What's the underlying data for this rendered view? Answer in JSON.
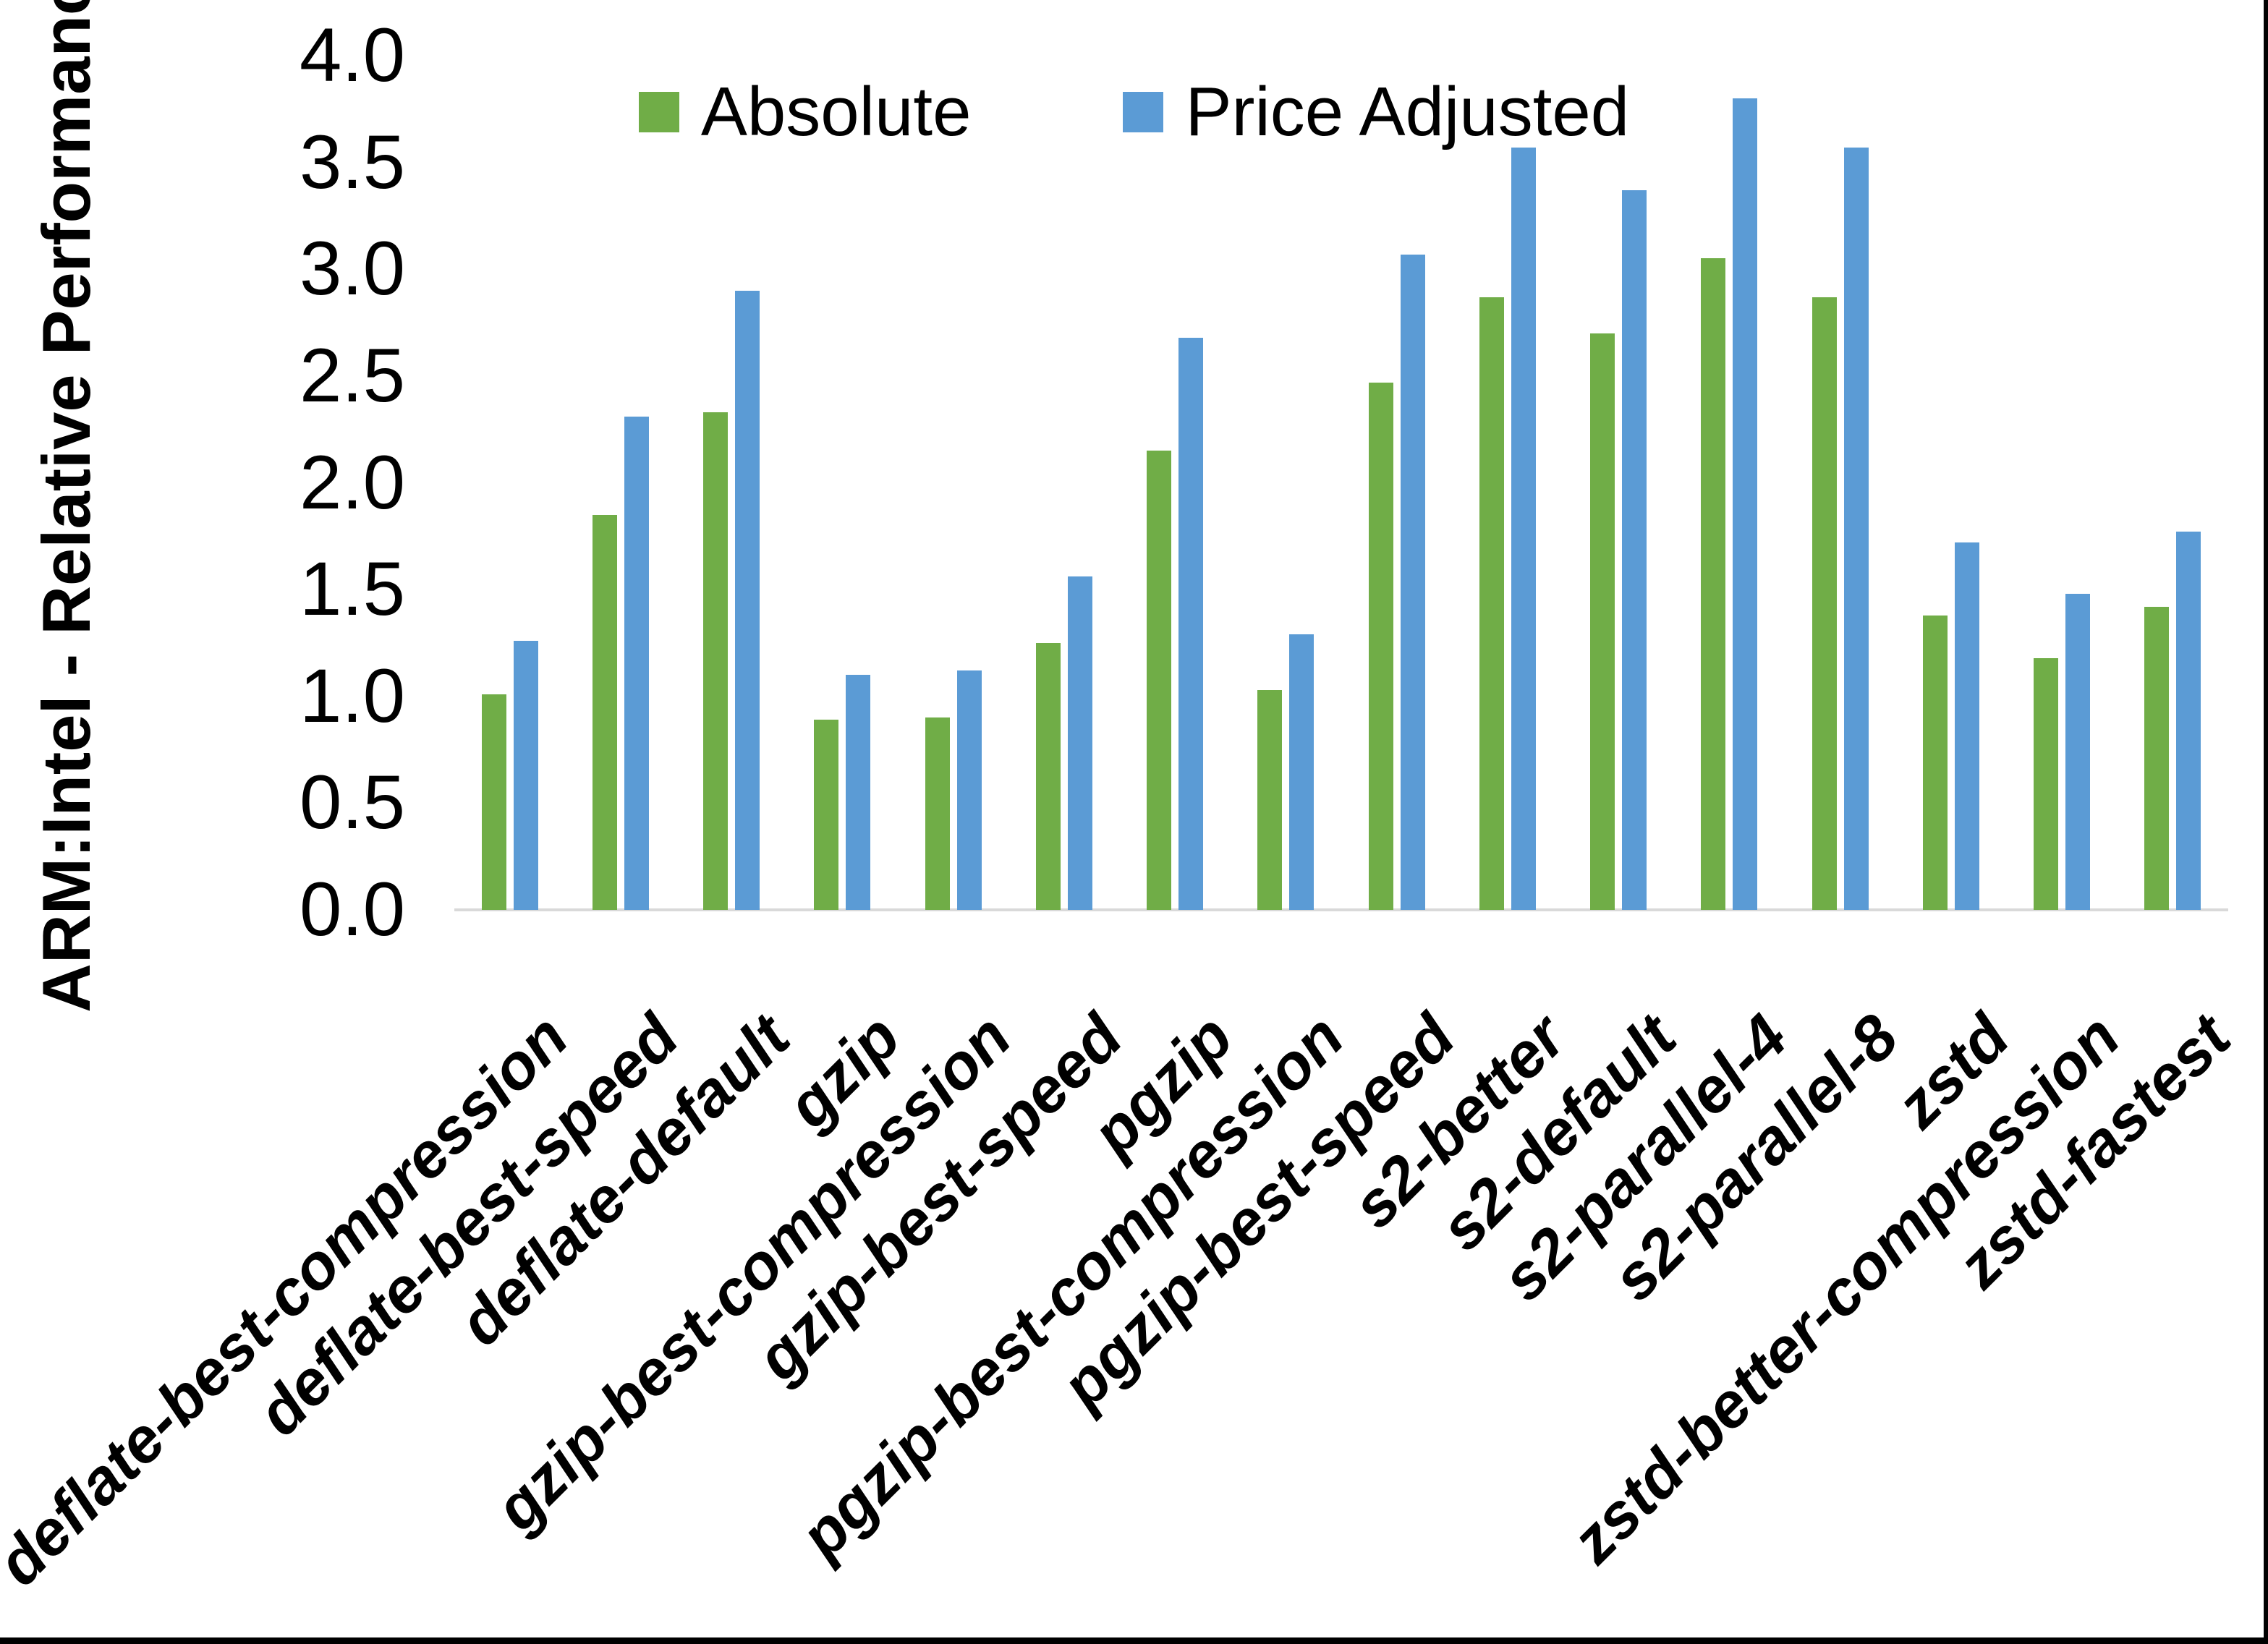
{
  "frame": {
    "background": "#FFFFFF",
    "border_color": "#000000"
  },
  "chart_data": {
    "type": "bar",
    "title": "",
    "xlabel": "",
    "ylabel": "ARM:Intel - Relative Performance",
    "ylim": [
      0.0,
      4.0
    ],
    "ytick_step": 0.5,
    "ytick_labels": [
      "0.0",
      "0.5",
      "1.0",
      "1.5",
      "2.0",
      "2.5",
      "3.0",
      "3.5",
      "4.0"
    ],
    "grid": false,
    "legend_position": "top-center",
    "axis_line_color": "#D9D9D9",
    "categories": [
      "deflate-best-compression",
      "deflate-best-speed",
      "deflate-default",
      "gzip",
      "gzip-best-compression",
      "gzip-best-speed",
      "pgzip",
      "pgzip-best-compression",
      "pgzip-best-speed",
      "s2-better",
      "s2-default",
      "s2-parallel-4",
      "s2-parallel-8",
      "zstd",
      "zstd-better-compression",
      "zstd-fastest"
    ],
    "series": [
      {
        "name": "Absolute",
        "color": "#70AD47",
        "values": [
          1.01,
          1.85,
          2.33,
          0.89,
          0.9,
          1.25,
          2.15,
          1.03,
          2.47,
          2.87,
          2.7,
          3.05,
          2.87,
          1.38,
          1.18,
          1.42
        ]
      },
      {
        "name": "Price Adjusted",
        "color": "#5B9BD5",
        "values": [
          1.26,
          2.31,
          2.9,
          1.1,
          1.12,
          1.56,
          2.68,
          1.29,
          3.07,
          3.57,
          3.37,
          3.8,
          3.57,
          1.72,
          1.48,
          1.77
        ]
      }
    ]
  }
}
